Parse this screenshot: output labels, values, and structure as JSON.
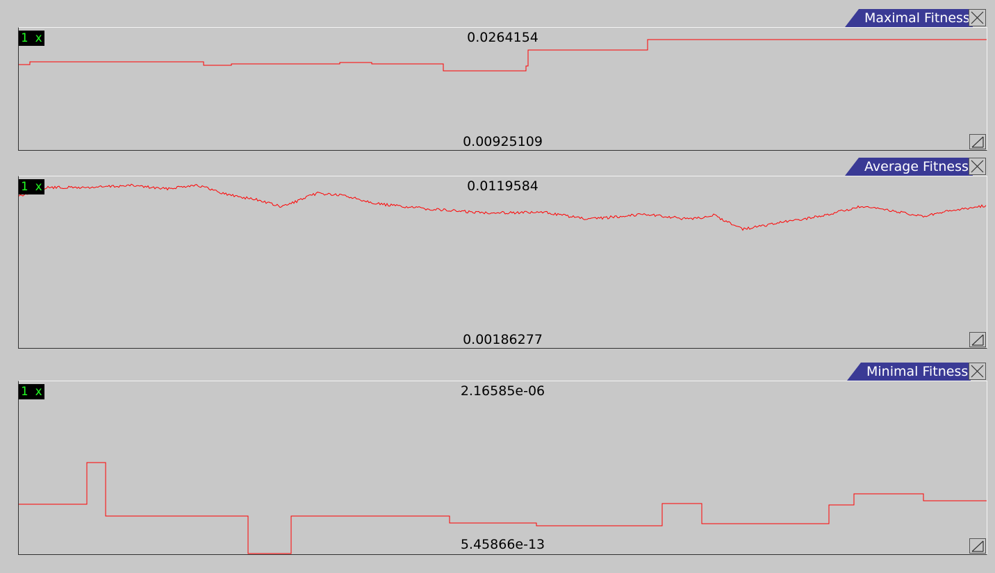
{
  "panels": [
    {
      "title": "Maximal Fitness",
      "zoom": "1 x",
      "max_label": "0.0264154",
      "min_label": "0.00925109"
    },
    {
      "title": "Average Fitness",
      "zoom": "1 x",
      "max_label": "0.0119584",
      "min_label": "0.00186277"
    },
    {
      "title": "Minimal Fitness",
      "zoom": "1 x",
      "max_label": "2.16585e-06",
      "min_label": "5.45866e-13"
    }
  ],
  "colors": {
    "line": "#ff0000",
    "tab_bg": "#3a3a95",
    "tab_text": "#ffffff",
    "zoom_bg": "#000000",
    "zoom_text": "#22ff22",
    "background": "#c8c8c8"
  },
  "icons": {
    "close": "close-icon",
    "resize": "resize-grip-icon"
  }
}
